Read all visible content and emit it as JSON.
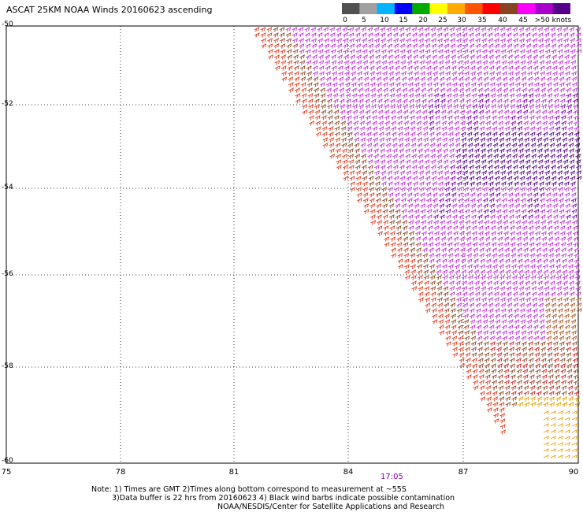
{
  "title": "ASCAT 25KM NOAA Winds 20160623 ascending",
  "legend": {
    "labels": [
      "0",
      "5",
      "10",
      "15",
      "20",
      "25",
      "30",
      "35",
      "40",
      "45",
      ">50 knots"
    ],
    "colors": [
      "#505050",
      "#a0a0a0",
      "#00b4ff",
      "#0000ff",
      "#00aa00",
      "#ffff00",
      "#ffaa00",
      "#ff5500",
      "#ff0000",
      "#884422",
      "#ff00ff",
      "#aa00cc",
      "#550088"
    ]
  },
  "axes": {
    "y_labels": [
      "-50",
      "-52",
      "-54",
      "-56",
      "-58",
      "-60"
    ],
    "x_labels": [
      "75",
      "78",
      "81",
      "84",
      "87",
      "90"
    ]
  },
  "time_label": "17:05",
  "notes": {
    "line1": "Note: 1) Times are GMT 2)Times along bottom correspond to measurement at ~55S",
    "line2": "3)Data buffer is 22 hrs from 20160623 4) Black wind barbs indicate possible contamination",
    "line3": "NOAA/NESDIS/Center for Satellite Applications and Research"
  }
}
